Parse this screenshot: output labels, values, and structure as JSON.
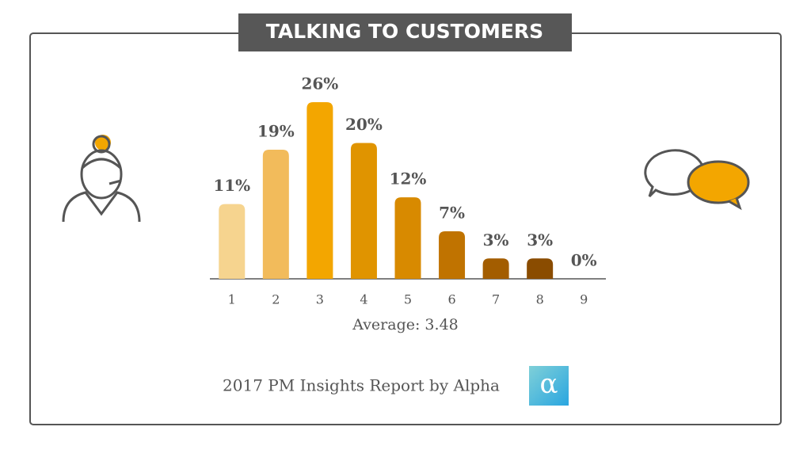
{
  "chart_data": {
    "type": "bar",
    "title": "TALKING TO CUSTOMERS",
    "categories": [
      "1",
      "2",
      "3",
      "4",
      "5",
      "6",
      "7",
      "8",
      "9"
    ],
    "values": [
      11,
      19,
      26,
      20,
      12,
      7,
      3,
      3,
      0
    ],
    "value_labels": [
      "11%",
      "19%",
      "26%",
      "20%",
      "12%",
      "7%",
      "3%",
      "3%",
      "0%"
    ],
    "colors": [
      "#f6d48f",
      "#f2bb5b",
      "#f3a600",
      "#e09400",
      "#d88a00",
      "#c07300",
      "#a35d00",
      "#8a4c00",
      "#7a4200"
    ],
    "annotation": "Average: 3.48",
    "footer": "2017 PM Insights Report by Alpha",
    "logo_text": "α"
  }
}
